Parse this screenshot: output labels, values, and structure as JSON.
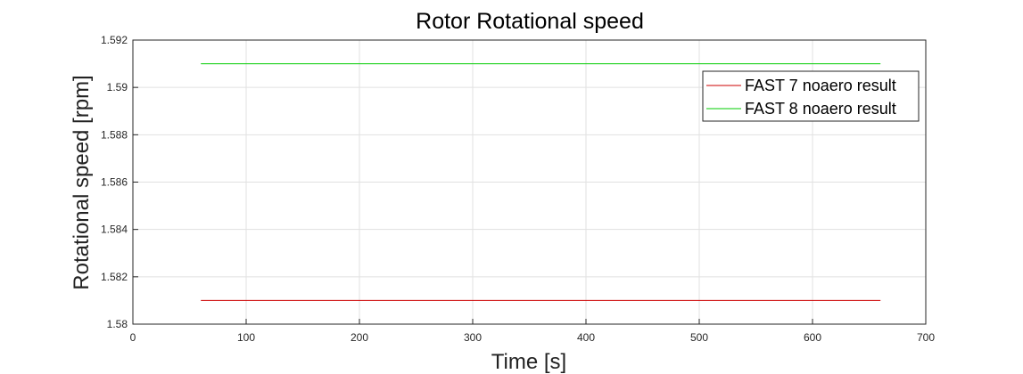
{
  "chart_data": {
    "type": "line",
    "title": "Rotor Rotational speed",
    "xlabel": "Time [s]",
    "ylabel": "Rotational speed [rpm]",
    "xlim": [
      0,
      700
    ],
    "ylim": [
      1.58,
      1.592
    ],
    "xticks": [
      "0",
      "100",
      "200",
      "300",
      "400",
      "500",
      "600",
      "700"
    ],
    "yticks": [
      "1.58",
      "1.582",
      "1.584",
      "1.586",
      "1.588",
      "1.59",
      "1.592"
    ],
    "grid": true,
    "legend_position": "top-right",
    "series": [
      {
        "name": "FAST 7 noaero result",
        "color": "#cc0000",
        "x": [
          60,
          660
        ],
        "y": [
          1.581,
          1.581
        ]
      },
      {
        "name": "FAST 8 noaero result",
        "color": "#00cc00",
        "x": [
          60,
          660
        ],
        "y": [
          1.591,
          1.591
        ]
      }
    ]
  }
}
